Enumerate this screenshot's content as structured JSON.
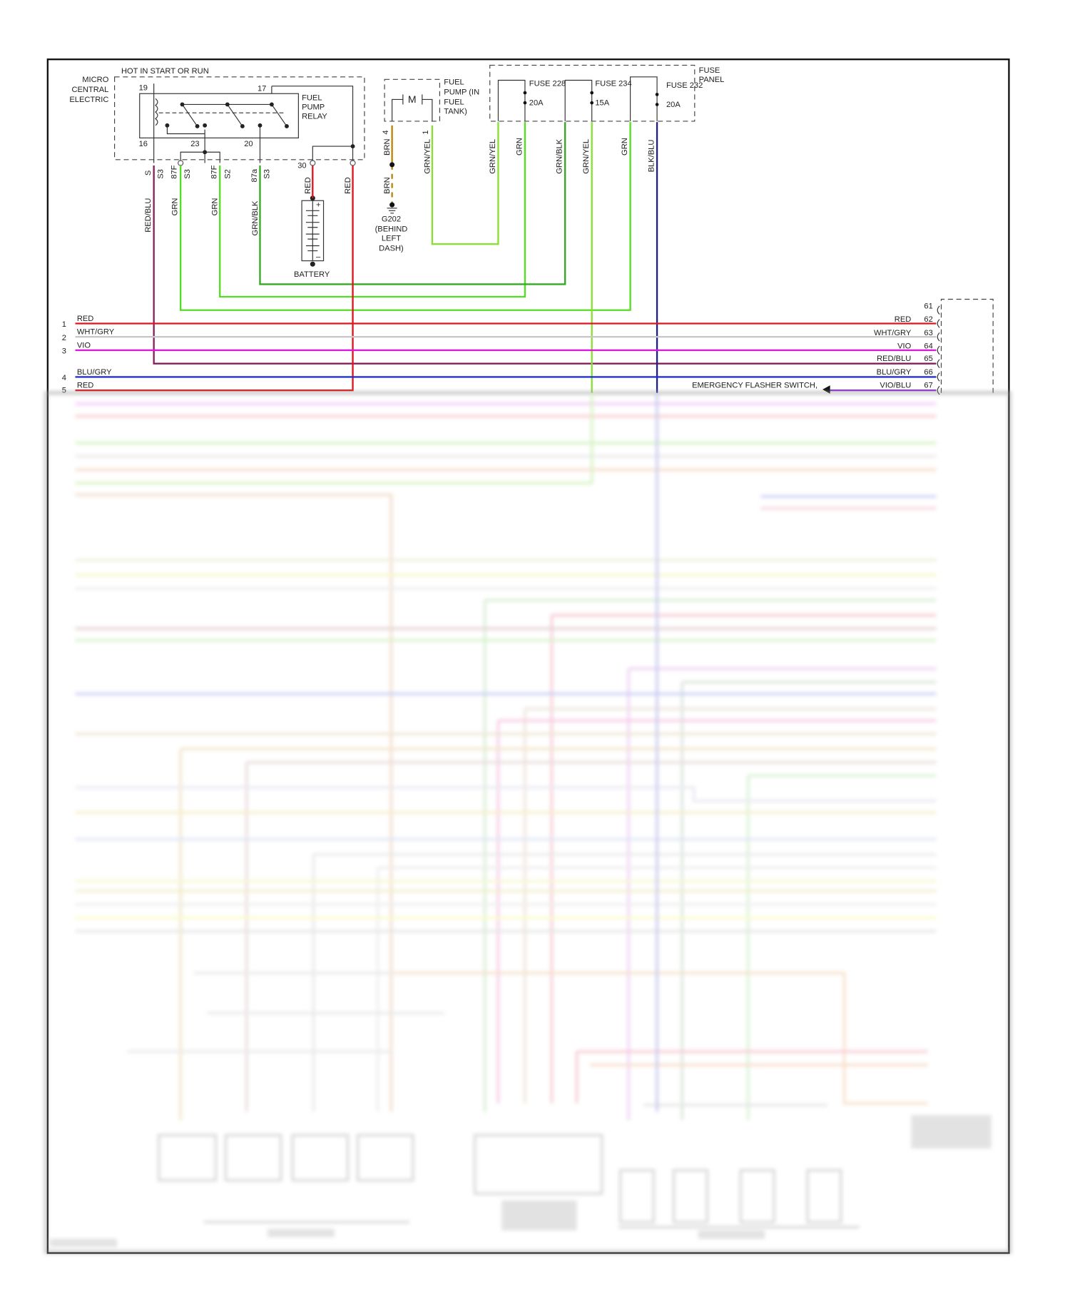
{
  "wire_colors": {
    "RED": "#e0141e",
    "WHT/GRY": "#c8c8c8",
    "VIO": "#d81ad8",
    "RED/BLU": "#8a1e5e",
    "BLU/GRY": "#2233cc",
    "GRN": "#55dd22",
    "GRN/BLK": "#33aa22",
    "GRN/YEL": "#88e033",
    "BRN": "#b8860b",
    "BLK/BLU": "#202080",
    "VIO/BLU": "#8833cc"
  },
  "relay": {
    "module_label": [
      "MICRO",
      "CENTRAL",
      "ELECTRIC"
    ],
    "hot_label": "HOT IN START OR RUN",
    "relay_label": [
      "FUEL",
      "PUMP",
      "RELAY"
    ],
    "pins": {
      "p19": "19",
      "p17": "17",
      "p16": "16",
      "p23": "23",
      "p20": "20",
      "p30": "30"
    },
    "connector_labels": [
      "S",
      "S3",
      "87F",
      "S3",
      "87F",
      "S2",
      "87a",
      "S3"
    ],
    "wire_labels": {
      "redblu": "RED/BLU",
      "grn1": "GRN",
      "grn2": "GRN",
      "grnblk": "GRN/BLK",
      "red30": "RED",
      "red": "RED"
    }
  },
  "battery": {
    "label": "BATTERY",
    "plus": "+",
    "minus": "–"
  },
  "fuel_pump": {
    "label": [
      "FUEL",
      "PUMP (IN",
      "FUEL",
      "TANK)"
    ],
    "motor": "M",
    "pin4": "4",
    "pin1": "1",
    "wire_brn1": "BRN",
    "wire_brn2": "BRN",
    "wire_grnyel": "GRN/YEL",
    "ground": [
      "G202",
      "(BEHIND",
      "LEFT",
      "DASH)"
    ]
  },
  "fuse_panel": {
    "label": [
      "FUSE",
      "PANEL"
    ],
    "fuses": [
      {
        "name": "FUSE 228",
        "rating": "20A"
      },
      {
        "name": "FUSE 234",
        "rating": "15A"
      },
      {
        "name": "FUSE 232",
        "rating": "20A"
      }
    ],
    "wire_labels": [
      "GRN/YEL",
      "GRN",
      "GRN/BLK",
      "GRN/YEL",
      "GRN",
      "BLK/BLU"
    ]
  },
  "left_bus": [
    {
      "num": "1",
      "color": "RED"
    },
    {
      "num": "2",
      "color": "WHT/GRY"
    },
    {
      "num": "3",
      "color": "VIO"
    },
    {
      "num": "4",
      "color": "BLU/GRY"
    },
    {
      "num": "5",
      "color": "RED"
    }
  ],
  "right_connector": [
    {
      "num": "61",
      "color": ""
    },
    {
      "num": "62",
      "color": "RED"
    },
    {
      "num": "63",
      "color": "WHT/GRY"
    },
    {
      "num": "64",
      "color": "VIO"
    },
    {
      "num": "65",
      "color": "RED/BLU"
    },
    {
      "num": "66",
      "color": "BLU/GRY"
    },
    {
      "num": "67",
      "color": "VIO/BLU"
    }
  ],
  "emergency_label": "EMERGENCY FLASHER SWITCH,"
}
